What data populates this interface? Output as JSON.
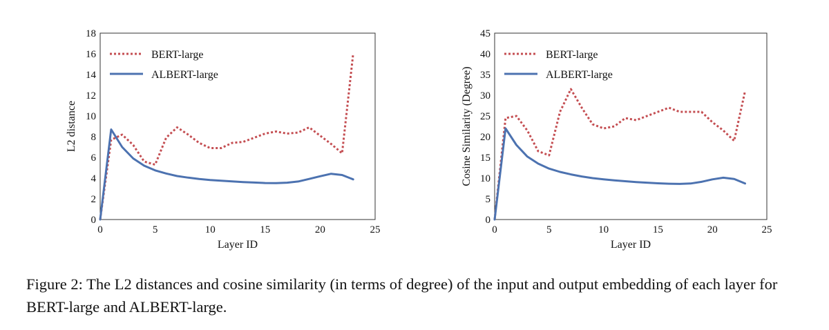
{
  "chart_data": [
    {
      "type": "line",
      "title": "",
      "xlabel": "Layer ID",
      "ylabel": "L2 distance",
      "xlim": [
        0,
        25
      ],
      "ylim": [
        0,
        18
      ],
      "xticks": [
        0,
        5,
        10,
        15,
        20,
        25
      ],
      "yticks": [
        0,
        2,
        4,
        6,
        8,
        10,
        12,
        14,
        16,
        18
      ],
      "grid": false,
      "legend_position": "top-left",
      "x": [
        0,
        1,
        2,
        3,
        4,
        5,
        6,
        7,
        8,
        9,
        10,
        11,
        12,
        13,
        14,
        15,
        16,
        17,
        18,
        19,
        20,
        21,
        22,
        23
      ],
      "series": [
        {
          "name": "BERT-large",
          "style": "dotted",
          "color": "#c44e52",
          "values": [
            0,
            7.7,
            8.2,
            7.2,
            5.6,
            5.3,
            7.9,
            8.9,
            8.2,
            7.4,
            6.9,
            6.9,
            7.4,
            7.5,
            7.9,
            8.3,
            8.5,
            8.3,
            8.4,
            8.9,
            8.1,
            7.3,
            6.4,
            16.0
          ]
        },
        {
          "name": "ALBERT-large",
          "style": "solid",
          "color": "#4c72b0",
          "values": [
            0,
            8.7,
            7.0,
            5.9,
            5.2,
            4.75,
            4.45,
            4.2,
            4.05,
            3.92,
            3.82,
            3.75,
            3.68,
            3.62,
            3.57,
            3.53,
            3.52,
            3.56,
            3.67,
            3.92,
            4.18,
            4.42,
            4.3,
            3.88
          ]
        }
      ]
    },
    {
      "type": "line",
      "title": "",
      "xlabel": "Layer ID",
      "ylabel": "Cosine Similarity (Degree)",
      "xlim": [
        0,
        25
      ],
      "ylim": [
        0,
        45
      ],
      "xticks": [
        0,
        5,
        10,
        15,
        20,
        25
      ],
      "yticks": [
        0,
        5,
        10,
        15,
        20,
        25,
        30,
        35,
        40,
        45
      ],
      "grid": false,
      "legend_position": "top-left",
      "x": [
        0,
        1,
        2,
        3,
        4,
        5,
        6,
        7,
        8,
        9,
        10,
        11,
        12,
        13,
        14,
        15,
        16,
        17,
        18,
        19,
        20,
        21,
        22,
        23
      ],
      "series": [
        {
          "name": "BERT-large",
          "style": "dotted",
          "color": "#c44e52",
          "values": [
            0,
            24.5,
            25,
            21.5,
            16.5,
            15.5,
            26,
            31.5,
            27,
            23,
            22,
            22.5,
            24.5,
            24,
            25,
            26,
            27,
            26,
            26,
            26,
            23.5,
            21.5,
            19,
            31
          ]
        },
        {
          "name": "ALBERT-large",
          "style": "solid",
          "color": "#4c72b0",
          "values": [
            0,
            22,
            18,
            15.2,
            13.5,
            12.3,
            11.5,
            10.9,
            10.4,
            10.0,
            9.7,
            9.45,
            9.25,
            9.05,
            8.9,
            8.75,
            8.65,
            8.6,
            8.7,
            9.1,
            9.7,
            10.1,
            9.8,
            8.7
          ]
        }
      ]
    }
  ],
  "caption": "Figure 2: The L2 distances and cosine similarity (in terms of degree) of the input and output embedding of each layer for BERT-large and ALBERT-large."
}
